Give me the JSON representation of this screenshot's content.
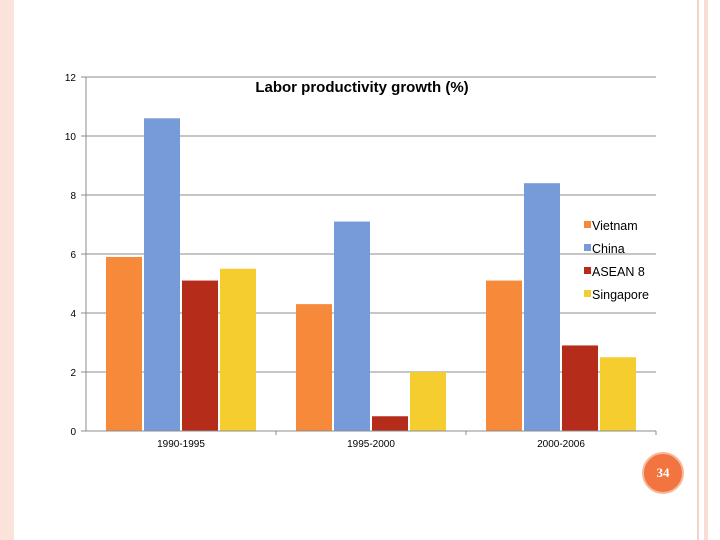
{
  "chart_data": {
    "type": "bar",
    "title": "Labor productivity growth (%)",
    "categories": [
      "1990-1995",
      "1995-2000",
      "2000-2006"
    ],
    "series": [
      {
        "name": "Vietnam",
        "values": [
          5.9,
          4.3,
          5.1
        ],
        "color": "#f7893a"
      },
      {
        "name": "China",
        "values": [
          10.6,
          7.1,
          8.4
        ],
        "color": "#779bd8"
      },
      {
        "name": "ASEAN 8",
        "values": [
          5.1,
          0.5,
          2.9
        ],
        "color": "#b52d1a"
      },
      {
        "name": "Singapore",
        "values": [
          5.5,
          2.0,
          2.5
        ],
        "color": "#f5cd2f"
      }
    ],
    "ylim": [
      0,
      12
    ],
    "yticks": [
      0,
      2,
      4,
      6,
      8,
      10,
      12
    ],
    "xlabel": "",
    "ylabel": "",
    "grid": true,
    "legend_position": "right"
  },
  "slide": {
    "page_number": "34"
  }
}
